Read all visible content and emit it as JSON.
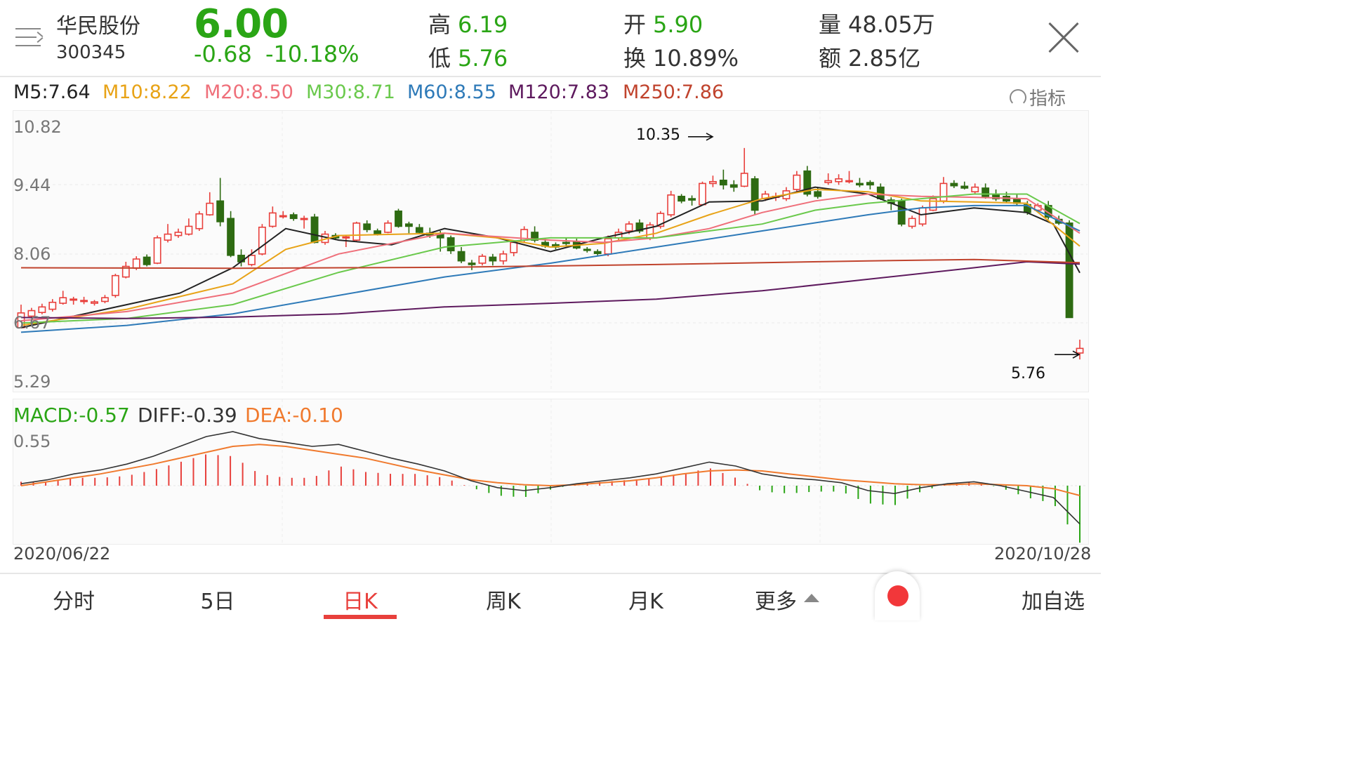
{
  "stock": {
    "name": "华民股份",
    "code": "300345",
    "price": "6.00",
    "change": "-0.68",
    "change_pct": "-10.18%",
    "high_label": "高",
    "high": "6.19",
    "low_label": "低",
    "low": "5.76",
    "open_label": "开",
    "open": "5.90",
    "turnover_label": "换",
    "turnover": "10.89%",
    "volume_label": "量",
    "volume": "48.05万",
    "amount_label": "额",
    "amount": "2.85亿"
  },
  "ma_legend": [
    {
      "text": "M5:7.64",
      "color": "#222222"
    },
    {
      "text": "M10:8.22",
      "color": "#e8a317"
    },
    {
      "text": "M20:8.50",
      "color": "#ef6f7a"
    },
    {
      "text": "M30:8.71",
      "color": "#6ac94c"
    },
    {
      "text": "M60:8.55",
      "color": "#2e7ab8"
    },
    {
      "text": "M120:7.83",
      "color": "#5e1a5e"
    },
    {
      "text": "M250:7.86",
      "color": "#c0432d"
    }
  ],
  "indicator_label": "指标",
  "macd_legend": {
    "macd": "MACD:-0.57",
    "diff": "DIFF:-0.39",
    "dea": "DEA:-0.10",
    "macd_color": "#2aa515",
    "diff_color": "#333333",
    "dea_color": "#f07a2e"
  },
  "chart_data": {
    "type": "candlestick",
    "y_ticks": [
      "10.82",
      "9.44",
      "8.06",
      "6.67",
      "5.29"
    ],
    "ylim": [
      5.29,
      10.82
    ],
    "x_start": "2020/06/22",
    "x_end": "2020/10/28",
    "high_marker": "10.35",
    "low_marker": "5.76",
    "macd_top_label": "0.55",
    "candles": [
      [
        6.45,
        6.77,
        6.95,
        6.6
      ],
      [
        6.7,
        6.82,
        6.88,
        6.65
      ],
      [
        6.78,
        6.9,
        6.97,
        6.74
      ],
      [
        6.85,
        7.0,
        7.07,
        6.8
      ],
      [
        6.98,
        7.1,
        7.25,
        6.95
      ],
      [
        7.05,
        7.07,
        7.12,
        6.95
      ],
      [
        7.02,
        7.04,
        7.12,
        6.96
      ],
      [
        6.98,
        7.01,
        7.05,
        6.93
      ],
      [
        7.02,
        7.1,
        7.16,
        6.98
      ],
      [
        7.15,
        7.58,
        7.62,
        7.1
      ],
      [
        7.55,
        7.78,
        7.88,
        7.52
      ],
      [
        7.74,
        7.94,
        8.0,
        7.7
      ],
      [
        7.98,
        7.82,
        8.04,
        7.78
      ],
      [
        7.85,
        8.4,
        8.45,
        7.83
      ],
      [
        8.35,
        8.48,
        8.7,
        8.3
      ],
      [
        8.45,
        8.52,
        8.6,
        8.4
      ],
      [
        8.48,
        8.65,
        8.82,
        8.45
      ],
      [
        8.6,
        8.92,
        8.98,
        8.55
      ],
      [
        8.9,
        9.15,
        9.39,
        8.88
      ],
      [
        9.2,
        8.75,
        9.7,
        8.65
      ],
      [
        8.82,
        8.02,
        8.98,
        7.98
      ],
      [
        8.02,
        7.88,
        8.15,
        7.78
      ],
      [
        7.82,
        8.02,
        8.15,
        7.78
      ],
      [
        8.05,
        8.63,
        8.7,
        8.02
      ],
      [
        8.65,
        8.94,
        9.08,
        8.62
      ],
      [
        8.86,
        8.88,
        8.98,
        8.82
      ],
      [
        8.9,
        8.82,
        8.95,
        8.77
      ],
      [
        8.8,
        8.82,
        8.88,
        8.6
      ],
      [
        8.85,
        8.3,
        8.92,
        8.28
      ],
      [
        8.3,
        8.48,
        8.55,
        8.25
      ],
      [
        8.45,
        8.4,
        8.5,
        8.35
      ],
      [
        8.4,
        8.42,
        8.45,
        8.2
      ],
      [
        8.35,
        8.72,
        8.75,
        8.32
      ],
      [
        8.7,
        8.58,
        8.78,
        8.52
      ],
      [
        8.55,
        8.48,
        8.6,
        8.45
      ],
      [
        8.52,
        8.72,
        8.78,
        8.5
      ],
      [
        8.98,
        8.65,
        9.03,
        8.62
      ],
      [
        8.7,
        8.65,
        8.75,
        8.5
      ],
      [
        8.62,
        8.52,
        8.7,
        8.48
      ],
      [
        8.5,
        8.46,
        8.62,
        8.4
      ],
      [
        8.48,
        8.4,
        8.55,
        8.1
      ],
      [
        8.4,
        8.12,
        8.45,
        8.05
      ],
      [
        8.1,
        7.9,
        8.2,
        7.85
      ],
      [
        7.85,
        7.82,
        7.92,
        7.7
      ],
      [
        7.85,
        8.0,
        8.05,
        7.8
      ],
      [
        7.98,
        7.9,
        8.05,
        7.8
      ],
      [
        7.9,
        8.05,
        8.12,
        7.82
      ],
      [
        8.08,
        8.3,
        8.35,
        8.0
      ],
      [
        8.35,
        8.58,
        8.65,
        8.3
      ],
      [
        8.52,
        8.35,
        8.65,
        8.3
      ],
      [
        8.3,
        8.22,
        8.4,
        8.18
      ],
      [
        8.25,
        8.2,
        8.3,
        8.15
      ],
      [
        8.3,
        8.28,
        8.4,
        8.22
      ],
      [
        8.32,
        8.18,
        8.38,
        8.15
      ],
      [
        8.15,
        8.13,
        8.2,
        8.08
      ],
      [
        8.1,
        8.06,
        8.15,
        8.02
      ],
      [
        8.05,
        8.38,
        8.45,
        8.0
      ],
      [
        8.4,
        8.52,
        8.6,
        8.35
      ],
      [
        8.55,
        8.7,
        8.76,
        8.48
      ],
      [
        8.72,
        8.55,
        8.8,
        8.5
      ],
      [
        8.4,
        8.68,
        8.74,
        8.35
      ],
      [
        8.65,
        8.93,
        8.98,
        8.6
      ],
      [
        8.9,
        9.33,
        9.42,
        8.85
      ],
      [
        9.3,
        9.2,
        9.35,
        9.15
      ],
      [
        9.25,
        9.22,
        9.32,
        9.1
      ],
      [
        9.12,
        9.58,
        9.62,
        9.1
      ],
      [
        9.58,
        9.62,
        9.75,
        9.5
      ],
      [
        9.65,
        9.55,
        9.88,
        9.45
      ],
      [
        9.55,
        9.5,
        9.65,
        9.4
      ],
      [
        9.52,
        9.8,
        10.35,
        9.5
      ],
      [
        9.68,
        9.0,
        9.74,
        8.9
      ],
      [
        9.25,
        9.35,
        9.42,
        9.2
      ],
      [
        9.3,
        9.3,
        9.38,
        9.2
      ],
      [
        9.25,
        9.42,
        9.5,
        9.2
      ],
      [
        9.45,
        9.76,
        9.85,
        9.4
      ],
      [
        9.85,
        9.35,
        9.96,
        9.3
      ],
      [
        9.4,
        9.3,
        9.5,
        9.25
      ],
      [
        9.6,
        9.64,
        9.8,
        9.55
      ],
      [
        9.62,
        9.68,
        9.78,
        9.55
      ],
      [
        9.62,
        9.64,
        9.85,
        9.58
      ],
      [
        9.58,
        9.55,
        9.7,
        9.5
      ],
      [
        9.6,
        9.55,
        9.65,
        9.45
      ],
      [
        9.5,
        9.25,
        9.58,
        9.22
      ],
      [
        9.22,
        9.15,
        9.28,
        9.0
      ],
      [
        9.2,
        8.7,
        9.25,
        8.65
      ],
      [
        8.65,
        8.82,
        8.88,
        8.6
      ],
      [
        8.7,
        9.05,
        9.1,
        8.65
      ],
      [
        9.0,
        9.25,
        9.32,
        8.98
      ],
      [
        9.2,
        9.58,
        9.72,
        9.15
      ],
      [
        9.58,
        9.53,
        9.65,
        9.48
      ],
      [
        9.52,
        9.48,
        9.62,
        9.45
      ],
      [
        9.4,
        9.5,
        9.58,
        9.35
      ],
      [
        9.48,
        9.3,
        9.58,
        9.25
      ],
      [
        9.35,
        9.25,
        9.45,
        9.2
      ],
      [
        9.3,
        9.2,
        9.4,
        9.15
      ],
      [
        9.25,
        9.15,
        9.35,
        9.1
      ],
      [
        9.12,
        8.95,
        9.2,
        8.9
      ],
      [
        9.0,
        9.1,
        9.15,
        8.95
      ],
      [
        9.1,
        8.85,
        9.2,
        8.8
      ],
      [
        8.8,
        8.72,
        8.88,
        8.68
      ],
      [
        8.72,
        6.67,
        8.78,
        6.67
      ],
      [
        5.9,
        6.0,
        6.19,
        5.76
      ]
    ],
    "ma": {
      "M5": [
        [
          0,
          6.45
        ],
        [
          0.05,
          6.7
        ],
        [
          0.1,
          6.95
        ],
        [
          0.15,
          7.2
        ],
        [
          0.2,
          7.75
        ],
        [
          0.25,
          8.6
        ],
        [
          0.3,
          8.35
        ],
        [
          0.35,
          8.25
        ],
        [
          0.4,
          8.6
        ],
        [
          0.45,
          8.4
        ],
        [
          0.5,
          8.1
        ],
        [
          0.55,
          8.4
        ],
        [
          0.6,
          8.65
        ],
        [
          0.65,
          9.18
        ],
        [
          0.7,
          9.2
        ],
        [
          0.75,
          9.5
        ],
        [
          0.8,
          9.35
        ],
        [
          0.85,
          8.9
        ],
        [
          0.9,
          9.05
        ],
        [
          0.95,
          8.95
        ],
        [
          0.975,
          8.7
        ],
        [
          1,
          7.64
        ]
      ],
      "M10": [
        [
          0,
          6.5
        ],
        [
          0.1,
          6.85
        ],
        [
          0.2,
          7.4
        ],
        [
          0.25,
          8.15
        ],
        [
          0.3,
          8.45
        ],
        [
          0.4,
          8.5
        ],
        [
          0.45,
          8.4
        ],
        [
          0.5,
          8.2
        ],
        [
          0.55,
          8.28
        ],
        [
          0.6,
          8.5
        ],
        [
          0.65,
          8.9
        ],
        [
          0.7,
          9.25
        ],
        [
          0.75,
          9.45
        ],
        [
          0.8,
          9.4
        ],
        [
          0.85,
          9.2
        ],
        [
          0.9,
          9.18
        ],
        [
          0.95,
          9.15
        ],
        [
          1,
          8.22
        ]
      ],
      "M20": [
        [
          0,
          6.6
        ],
        [
          0.1,
          6.8
        ],
        [
          0.2,
          7.2
        ],
        [
          0.3,
          8.05
        ],
        [
          0.4,
          8.5
        ],
        [
          0.5,
          8.35
        ],
        [
          0.55,
          8.3
        ],
        [
          0.6,
          8.4
        ],
        [
          0.65,
          8.6
        ],
        [
          0.7,
          8.95
        ],
        [
          0.75,
          9.2
        ],
        [
          0.8,
          9.35
        ],
        [
          0.85,
          9.3
        ],
        [
          0.9,
          9.28
        ],
        [
          0.95,
          9.25
        ],
        [
          1,
          8.5
        ]
      ],
      "M30": [
        [
          0,
          6.55
        ],
        [
          0.1,
          6.65
        ],
        [
          0.2,
          6.95
        ],
        [
          0.3,
          7.65
        ],
        [
          0.4,
          8.2
        ],
        [
          0.5,
          8.4
        ],
        [
          0.6,
          8.4
        ],
        [
          0.7,
          8.7
        ],
        [
          0.75,
          9.0
        ],
        [
          0.8,
          9.15
        ],
        [
          0.85,
          9.25
        ],
        [
          0.9,
          9.35
        ],
        [
          0.95,
          9.35
        ],
        [
          1,
          8.71
        ]
      ],
      "M60": [
        [
          0,
          6.35
        ],
        [
          0.1,
          6.5
        ],
        [
          0.2,
          6.75
        ],
        [
          0.3,
          7.15
        ],
        [
          0.4,
          7.55
        ],
        [
          0.5,
          7.85
        ],
        [
          0.6,
          8.2
        ],
        [
          0.7,
          8.55
        ],
        [
          0.8,
          8.9
        ],
        [
          0.85,
          9.05
        ],
        [
          0.9,
          9.1
        ],
        [
          0.95,
          9.1
        ],
        [
          1,
          8.55
        ]
      ],
      "M120": [
        [
          0,
          6.67
        ],
        [
          0.1,
          6.65
        ],
        [
          0.2,
          6.68
        ],
        [
          0.3,
          6.75
        ],
        [
          0.4,
          6.9
        ],
        [
          0.5,
          6.98
        ],
        [
          0.6,
          7.07
        ],
        [
          0.7,
          7.25
        ],
        [
          0.8,
          7.5
        ],
        [
          0.9,
          7.75
        ],
        [
          0.95,
          7.88
        ],
        [
          1,
          7.83
        ]
      ],
      "M250": [
        [
          0,
          7.75
        ],
        [
          0.2,
          7.74
        ],
        [
          0.4,
          7.76
        ],
        [
          0.6,
          7.82
        ],
        [
          0.8,
          7.9
        ],
        [
          0.9,
          7.93
        ],
        [
          1,
          7.86
        ]
      ]
    },
    "macd_diff": [
      0.02,
      0.06,
      0.12,
      0.16,
      0.22,
      0.3,
      0.4,
      0.5,
      0.55,
      0.48,
      0.44,
      0.4,
      0.42,
      0.35,
      0.28,
      0.22,
      0.15,
      0.05,
      -0.02,
      -0.05,
      -0.02,
      0.02,
      0.05,
      0.08,
      0.12,
      0.18,
      0.24,
      0.2,
      0.12,
      0.08,
      0.06,
      0.03,
      -0.05,
      -0.08,
      -0.02,
      0.02,
      0.04,
      0.0,
      -0.06,
      -0.12,
      -0.39
    ],
    "macd_dea": [
      0.0,
      0.04,
      0.08,
      0.12,
      0.17,
      0.22,
      0.28,
      0.34,
      0.4,
      0.42,
      0.4,
      0.36,
      0.32,
      0.28,
      0.22,
      0.16,
      0.11,
      0.06,
      0.03,
      0.01,
      0.0,
      0.01,
      0.03,
      0.05,
      0.08,
      0.12,
      0.15,
      0.16,
      0.15,
      0.12,
      0.09,
      0.06,
      0.04,
      0.02,
      0.01,
      0.01,
      0.02,
      0.01,
      0.0,
      -0.03,
      -0.1
    ]
  },
  "tabs": [
    "分时",
    "5日",
    "日K",
    "周K",
    "月K",
    "更多",
    "加自选"
  ],
  "active_tab": "日K"
}
